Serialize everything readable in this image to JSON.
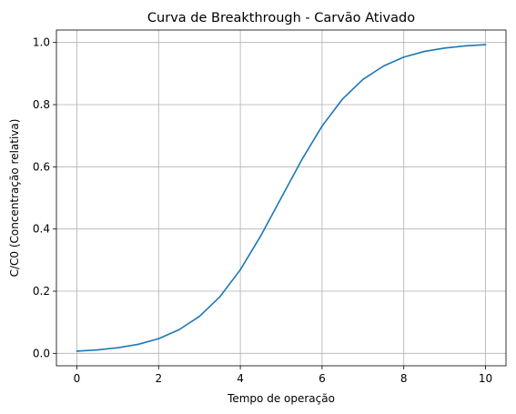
{
  "chart_data": {
    "type": "line",
    "title": "Curva de Breakthrough - Carvão Ativado",
    "xlabel": "Tempo de operação",
    "ylabel": "C/C0 (Concentração relativa)",
    "xlim": [
      -0.5,
      10.5
    ],
    "ylim": [
      -0.04,
      1.04
    ],
    "xticks": [
      0,
      2,
      4,
      6,
      8,
      10
    ],
    "xtick_labels": [
      "0",
      "2",
      "4",
      "6",
      "8",
      "10"
    ],
    "yticks": [
      0.0,
      0.2,
      0.4,
      0.6,
      0.8,
      1.0
    ],
    "ytick_labels": [
      "0.0",
      "0.2",
      "0.4",
      "0.6",
      "0.8",
      "1.0"
    ],
    "grid": true,
    "legend": "none",
    "series": [
      {
        "color": "#1f77b4",
        "x": [
          0,
          0.5,
          1,
          1.5,
          2,
          2.5,
          3,
          3.5,
          4,
          4.5,
          5,
          5.5,
          6,
          6.5,
          7,
          7.5,
          8,
          8.5,
          9,
          9.5,
          10
        ],
        "y": [
          0.007,
          0.011,
          0.018,
          0.029,
          0.047,
          0.076,
          0.119,
          0.182,
          0.269,
          0.378,
          0.5,
          0.622,
          0.731,
          0.818,
          0.881,
          0.924,
          0.953,
          0.971,
          0.982,
          0.989,
          0.993
        ]
      }
    ],
    "colors": {
      "grid": "#b0b0b0",
      "axes": "#000000",
      "background": "#ffffff"
    }
  }
}
